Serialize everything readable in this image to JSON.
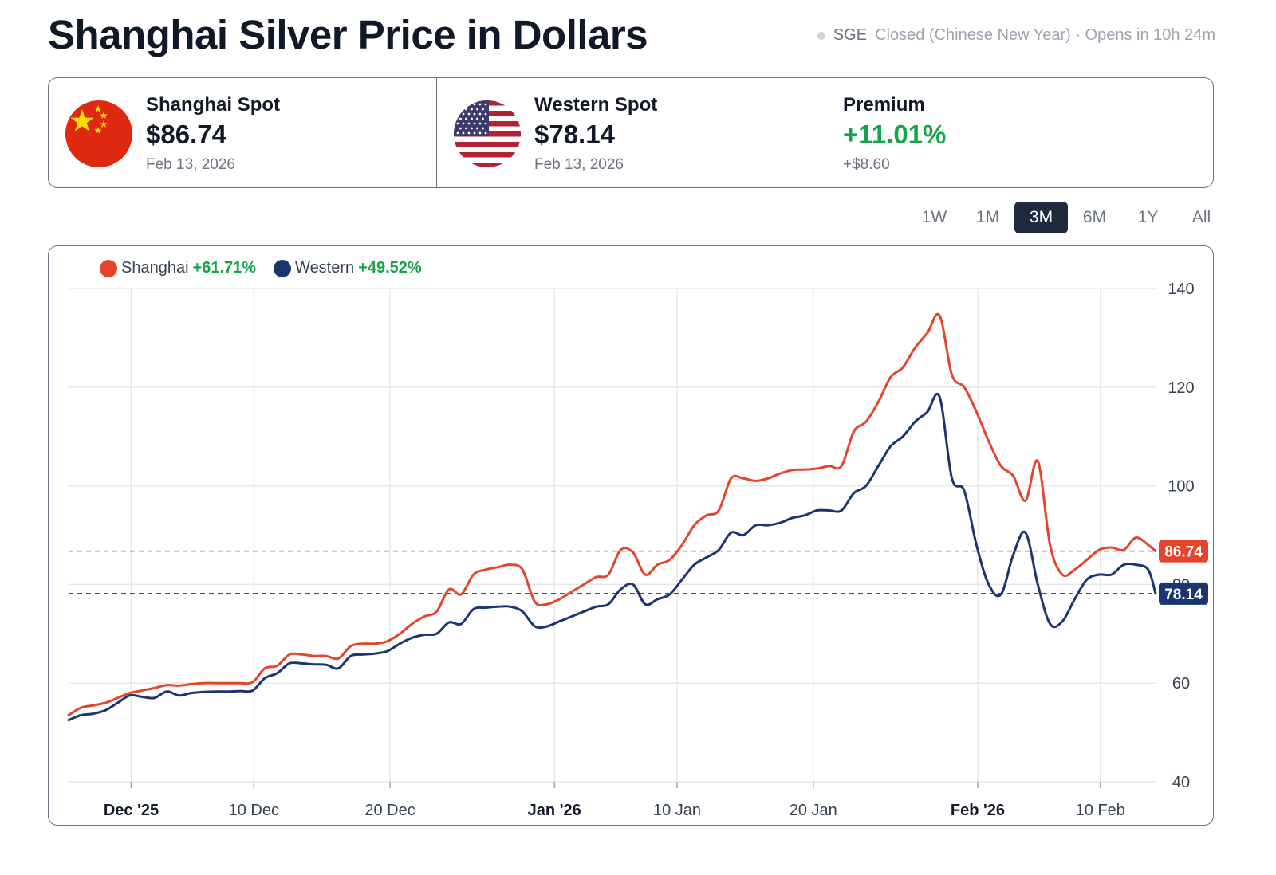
{
  "page": {
    "title": "Shanghai Silver Price in Dollars",
    "status": {
      "exchange": "SGE",
      "text": "Closed (Chinese New Year) · Opens in 10h 24m"
    }
  },
  "cards": {
    "shanghai": {
      "label": "Shanghai Spot",
      "price": "$86.74",
      "date": "Feb 13, 2026"
    },
    "western": {
      "label": "Western Spot",
      "price": "$78.14",
      "date": "Feb 13, 2026"
    },
    "premium": {
      "label": "Premium",
      "value": "+11.01%",
      "diff": "+$8.60"
    }
  },
  "ranges": {
    "options": [
      "1W",
      "1M",
      "3M",
      "6M",
      "1Y",
      "All"
    ],
    "active": "3M"
  },
  "colors": {
    "shanghai": "#e5442b",
    "western": "#1a3570",
    "positive": "#16a34a",
    "grid": "#e5e7eb"
  },
  "legend": {
    "shanghai": {
      "name": "Shanghai",
      "change": "+61.71%"
    },
    "western": {
      "name": "Western",
      "change": "+49.52%"
    }
  },
  "chart_data": {
    "type": "line",
    "title": "Shanghai Silver Price in Dollars",
    "xlabel": "",
    "ylabel": "",
    "ylim": [
      40,
      140
    ],
    "xlim": [
      0,
      88.6
    ],
    "yticks": [
      40,
      60,
      80,
      100,
      120,
      140
    ],
    "xticks": [
      {
        "label": "Dec '25",
        "value": 5.1,
        "bold": true
      },
      {
        "label": "10 Dec",
        "value": 15.1,
        "bold": false
      },
      {
        "label": "20 Dec",
        "value": 26.2,
        "bold": false
      },
      {
        "label": "Jan '26",
        "value": 39.6,
        "bold": true
      },
      {
        "label": "10 Jan",
        "value": 49.6,
        "bold": false
      },
      {
        "label": "20 Jan",
        "value": 60.7,
        "bold": false
      },
      {
        "label": "Feb '26",
        "value": 74.1,
        "bold": true
      },
      {
        "label": "10 Feb",
        "value": 84.1,
        "bold": false
      }
    ],
    "grid": true,
    "legend_position": "top-left",
    "series": [
      {
        "name": "Shanghai",
        "last": 86.74,
        "label": "86.74",
        "points": [
          [
            0,
            53.5
          ],
          [
            1,
            55
          ],
          [
            2,
            55.5
          ],
          [
            3,
            56
          ],
          [
            4,
            57
          ],
          [
            5,
            58
          ],
          [
            6,
            58.5
          ],
          [
            7,
            59
          ],
          [
            8,
            59.6
          ],
          [
            9,
            59.5
          ],
          [
            10,
            59.8
          ],
          [
            11,
            60
          ],
          [
            12,
            60
          ],
          [
            13,
            60
          ],
          [
            14,
            60
          ],
          [
            15,
            60.2
          ],
          [
            16,
            63
          ],
          [
            17,
            63.5
          ],
          [
            18,
            65.8
          ],
          [
            19,
            65.8
          ],
          [
            20,
            65.5
          ],
          [
            21,
            65.5
          ],
          [
            22,
            65
          ],
          [
            23,
            67.5
          ],
          [
            24,
            68
          ],
          [
            25,
            68
          ],
          [
            26,
            68.5
          ],
          [
            27,
            70
          ],
          [
            28,
            72
          ],
          [
            29,
            73.5
          ],
          [
            30,
            74.5
          ],
          [
            31,
            79
          ],
          [
            32,
            78
          ],
          [
            33,
            82
          ],
          [
            34,
            83
          ],
          [
            35,
            83.5
          ],
          [
            36,
            84
          ],
          [
            37,
            83
          ],
          [
            38,
            76.5
          ],
          [
            39,
            76
          ],
          [
            40,
            77
          ],
          [
            41,
            78.5
          ],
          [
            42,
            80
          ],
          [
            43,
            81.5
          ],
          [
            44,
            82
          ],
          [
            45,
            87
          ],
          [
            46,
            86.5
          ],
          [
            47,
            82
          ],
          [
            48,
            84
          ],
          [
            49,
            85
          ],
          [
            50,
            88
          ],
          [
            51,
            92
          ],
          [
            52,
            94
          ],
          [
            53,
            95
          ],
          [
            54,
            101.5
          ],
          [
            55,
            101.5
          ],
          [
            56,
            101
          ],
          [
            57,
            101.5
          ],
          [
            58,
            102.5
          ],
          [
            59,
            103.2
          ],
          [
            60,
            103.3
          ],
          [
            61,
            103.5
          ],
          [
            62,
            104
          ],
          [
            63,
            104
          ],
          [
            64,
            111
          ],
          [
            65,
            113
          ],
          [
            66,
            117
          ],
          [
            67,
            122
          ],
          [
            68,
            124
          ],
          [
            69,
            128
          ],
          [
            70,
            131
          ],
          [
            71,
            134.5
          ],
          [
            72,
            122.5
          ],
          [
            73,
            120
          ],
          [
            74,
            115
          ],
          [
            75,
            109
          ],
          [
            76,
            104
          ],
          [
            77,
            102
          ],
          [
            78,
            97
          ],
          [
            79,
            105
          ],
          [
            80,
            88
          ],
          [
            81,
            82
          ],
          [
            82,
            83
          ],
          [
            83,
            85
          ],
          [
            84,
            87
          ],
          [
            85,
            87.5
          ],
          [
            86,
            87
          ],
          [
            87,
            89.5
          ],
          [
            88,
            88
          ],
          [
            88.6,
            86.74
          ]
        ]
      },
      {
        "name": "Western",
        "last": 78.14,
        "label": "78.14",
        "points": [
          [
            0,
            52.5
          ],
          [
            1,
            53.5
          ],
          [
            2,
            53.8
          ],
          [
            3,
            54.5
          ],
          [
            4,
            56
          ],
          [
            5,
            57.5
          ],
          [
            6,
            57.2
          ],
          [
            7,
            57
          ],
          [
            8,
            58.3
          ],
          [
            9,
            57.5
          ],
          [
            10,
            58
          ],
          [
            11,
            58.2
          ],
          [
            12,
            58.3
          ],
          [
            13,
            58.3
          ],
          [
            14,
            58.4
          ],
          [
            15,
            58.5
          ],
          [
            16,
            61
          ],
          [
            17,
            62
          ],
          [
            18,
            64
          ],
          [
            19,
            64
          ],
          [
            20,
            63.8
          ],
          [
            21,
            63.7
          ],
          [
            22,
            63
          ],
          [
            23,
            65.5
          ],
          [
            24,
            65.8
          ],
          [
            25,
            66
          ],
          [
            26,
            66.5
          ],
          [
            27,
            68
          ],
          [
            28,
            69.2
          ],
          [
            29,
            69.8
          ],
          [
            30,
            70
          ],
          [
            31,
            72.3
          ],
          [
            32,
            72
          ],
          [
            33,
            75
          ],
          [
            34,
            75.3
          ],
          [
            35,
            75.5
          ],
          [
            36,
            75.5
          ],
          [
            37,
            74.5
          ],
          [
            38,
            71.5
          ],
          [
            39,
            71.5
          ],
          [
            40,
            72.5
          ],
          [
            41,
            73.5
          ],
          [
            42,
            74.5
          ],
          [
            43,
            75.5
          ],
          [
            44,
            76
          ],
          [
            45,
            79
          ],
          [
            46,
            80
          ],
          [
            47,
            76
          ],
          [
            48,
            77
          ],
          [
            49,
            78
          ],
          [
            50,
            81
          ],
          [
            51,
            84
          ],
          [
            52,
            85.5
          ],
          [
            53,
            87
          ],
          [
            54,
            90.5
          ],
          [
            55,
            90
          ],
          [
            56,
            92
          ],
          [
            57,
            92
          ],
          [
            58,
            92.5
          ],
          [
            59,
            93.5
          ],
          [
            60,
            94
          ],
          [
            61,
            95
          ],
          [
            62,
            95
          ],
          [
            63,
            95
          ],
          [
            64,
            98.5
          ],
          [
            65,
            100
          ],
          [
            66,
            104
          ],
          [
            67,
            108
          ],
          [
            68,
            110
          ],
          [
            69,
            113
          ],
          [
            70,
            115
          ],
          [
            71,
            118
          ],
          [
            72,
            101.5
          ],
          [
            73,
            99
          ],
          [
            74,
            88
          ],
          [
            75,
            80
          ],
          [
            76,
            78
          ],
          [
            77,
            86
          ],
          [
            78,
            90.5
          ],
          [
            79,
            80
          ],
          [
            80,
            72
          ],
          [
            81,
            72.5
          ],
          [
            82,
            77
          ],
          [
            83,
            81
          ],
          [
            84,
            82
          ],
          [
            85,
            82
          ],
          [
            86,
            84
          ],
          [
            87,
            84
          ],
          [
            88,
            83
          ],
          [
            88.6,
            78.14
          ]
        ]
      }
    ]
  }
}
